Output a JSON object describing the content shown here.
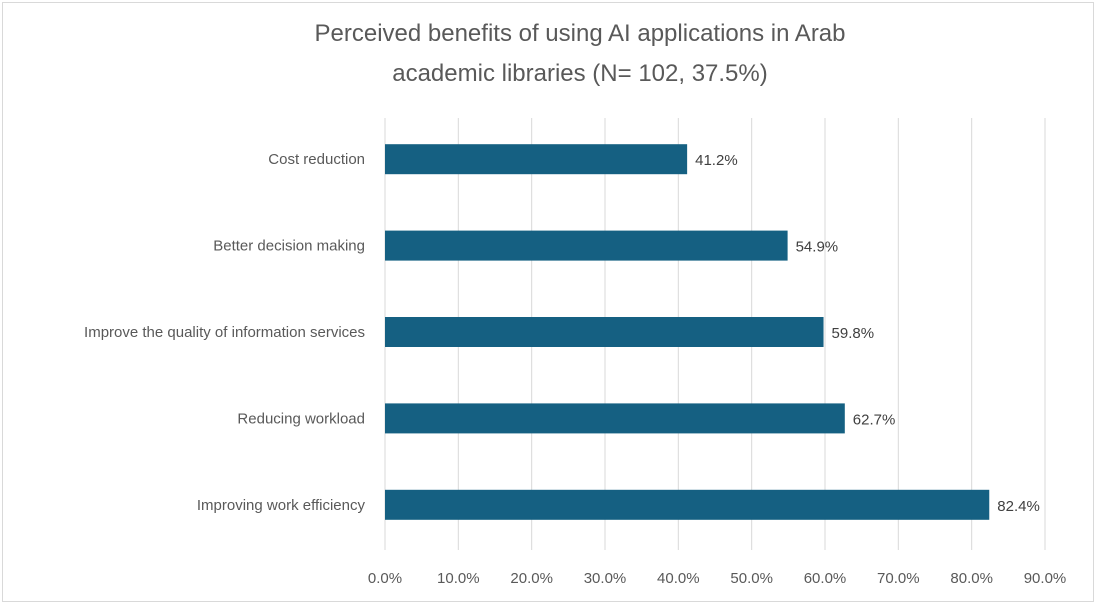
{
  "chart_data": {
    "type": "bar",
    "orientation": "horizontal",
    "title": "Perceived benefits of using AI applications in Arab academic libraries (N= 102, 37.5%)",
    "title_lines": [
      "Perceived benefits of using AI applications in Arab",
      "academic libraries (N= 102, 37.5%)"
    ],
    "categories": [
      "Cost reduction",
      "Better decision making",
      "Improve the quality of information services",
      "Reducing workload",
      "Improving work efficiency"
    ],
    "values": [
      41.2,
      54.9,
      59.8,
      62.7,
      82.4
    ],
    "data_labels": [
      "41.2%",
      "54.9%",
      "59.8%",
      "62.7%",
      "82.4%"
    ],
    "xlim": [
      0,
      90
    ],
    "x_ticks": [
      "0.0%",
      "10.0%",
      "20.0%",
      "30.0%",
      "40.0%",
      "50.0%",
      "60.0%",
      "70.0%",
      "80.0%",
      "90.0%"
    ],
    "xlabel": "",
    "ylabel": "",
    "grid": true,
    "bar_color": "#156082"
  }
}
